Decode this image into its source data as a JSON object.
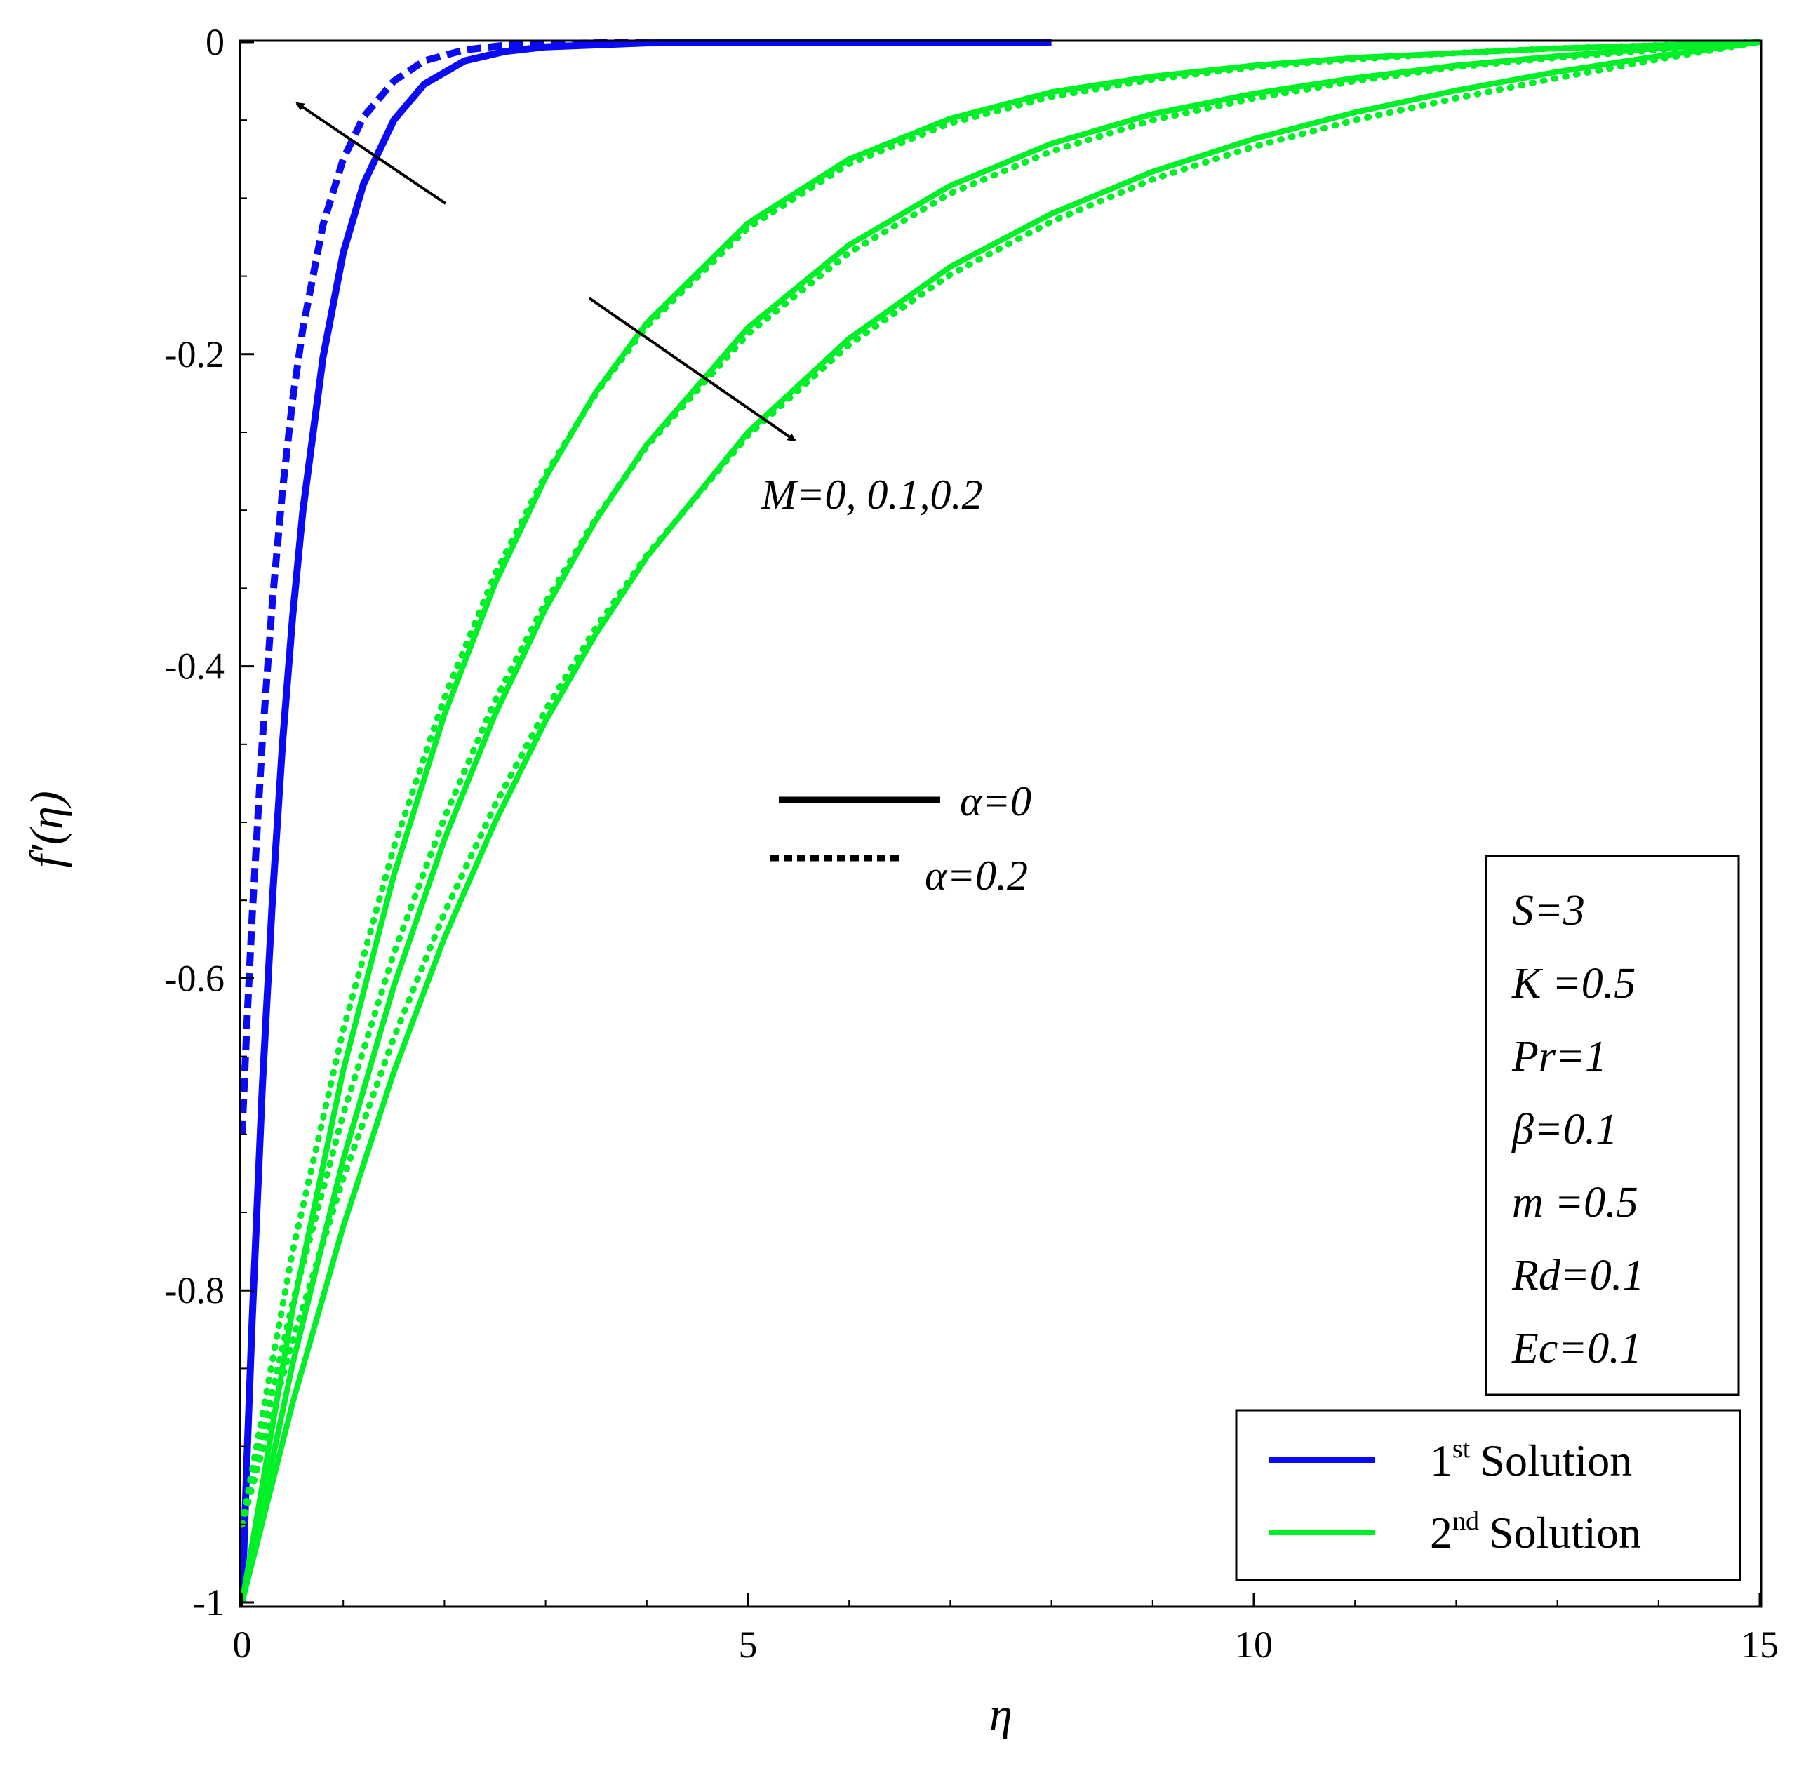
{
  "chart_data": {
    "type": "line",
    "xlabel": "η",
    "ylabel": "f′(η)",
    "xlim": [
      0,
      15
    ],
    "ylim": [
      -1,
      0
    ],
    "x_ticks": [
      {
        "value": 0,
        "label": "0"
      },
      {
        "value": 5,
        "label": "5"
      },
      {
        "value": 10,
        "label": "10"
      },
      {
        "value": 15,
        "label": "15"
      }
    ],
    "y_ticks": [
      {
        "value": 0,
        "label": "0"
      },
      {
        "value": -0.2,
        "label": "-0.2"
      },
      {
        "value": -0.4,
        "label": "-0.4"
      },
      {
        "value": -0.6,
        "label": "-0.6"
      },
      {
        "value": -0.8,
        "label": "-0.8"
      },
      {
        "value": -1,
        "label": "-1"
      }
    ],
    "colors": {
      "first": "#0a0af5",
      "second": "#00f028"
    },
    "series": [
      {
        "solution": "1st",
        "alpha": "0",
        "style": "solid",
        "x": [
          0,
          0.05,
          0.1,
          0.2,
          0.3,
          0.4,
          0.5,
          0.6,
          0.8,
          1.0,
          1.2,
          1.5,
          1.8,
          2.2,
          2.6,
          3.0,
          4.0,
          5.0,
          6.0,
          7.0,
          8.0
        ],
        "y": [
          -1.0,
          -0.905,
          -0.819,
          -0.67,
          -0.549,
          -0.449,
          -0.368,
          -0.301,
          -0.202,
          -0.135,
          -0.091,
          -0.05,
          -0.027,
          -0.012,
          -0.006,
          -0.003,
          -0.0005,
          -0.0001,
          0,
          0,
          0
        ]
      },
      {
        "solution": "1st",
        "alpha": "0.2",
        "style": "dashed",
        "x": [
          0,
          0.05,
          0.1,
          0.2,
          0.3,
          0.4,
          0.5,
          0.6,
          0.8,
          1.0,
          1.2,
          1.5,
          1.8,
          2.2,
          2.6,
          3.0,
          4.0,
          5.0,
          6.0,
          7.0,
          8.0
        ],
        "y": [
          -0.7,
          -0.626,
          -0.56,
          -0.448,
          -0.358,
          -0.287,
          -0.229,
          -0.184,
          -0.117,
          -0.075,
          -0.048,
          -0.025,
          -0.012,
          -0.005,
          -0.002,
          -0.001,
          0,
          0,
          0,
          0,
          0
        ]
      },
      {
        "solution": "2nd",
        "alpha": "0",
        "style": "solid",
        "x": [
          0,
          0.5,
          1,
          1.5,
          2,
          2.5,
          3,
          3.5,
          4,
          5,
          6,
          7,
          8,
          9,
          10,
          11,
          12,
          13,
          14,
          15
        ],
        "y": [
          -1.0,
          -0.812,
          -0.659,
          -0.534,
          -0.431,
          -0.347,
          -0.279,
          -0.224,
          -0.18,
          -0.116,
          -0.075,
          -0.049,
          -0.032,
          -0.022,
          -0.015,
          -0.01,
          -0.007,
          -0.004,
          -0.002,
          0
        ]
      },
      {
        "solution": "2nd",
        "alpha": "0",
        "style": "solid",
        "x": [
          0,
          0.5,
          1,
          1.5,
          2,
          2.5,
          3,
          3.5,
          4,
          5,
          6,
          7,
          8,
          9,
          10,
          11,
          12,
          13,
          14,
          15
        ],
        "y": [
          -1.0,
          -0.847,
          -0.716,
          -0.605,
          -0.511,
          -0.431,
          -0.363,
          -0.306,
          -0.258,
          -0.183,
          -0.13,
          -0.092,
          -0.065,
          -0.046,
          -0.033,
          -0.023,
          -0.015,
          -0.009,
          -0.004,
          0
        ]
      },
      {
        "solution": "2nd",
        "alpha": "0",
        "style": "solid",
        "x": [
          0,
          0.5,
          1,
          1.5,
          2,
          2.5,
          3,
          3.5,
          4,
          5,
          6,
          7,
          8,
          9,
          10,
          11,
          12,
          13,
          14,
          15
        ],
        "y": [
          -1.0,
          -0.872,
          -0.759,
          -0.66,
          -0.574,
          -0.5,
          -0.435,
          -0.379,
          -0.33,
          -0.25,
          -0.19,
          -0.144,
          -0.11,
          -0.083,
          -0.062,
          -0.045,
          -0.031,
          -0.019,
          -0.009,
          0
        ]
      },
      {
        "solution": "2nd",
        "alpha": "0.2",
        "style": "dotted",
        "x": [
          0,
          0.5,
          1,
          1.5,
          2,
          2.5,
          3,
          3.5,
          4,
          5,
          6,
          7,
          8,
          9,
          10,
          11,
          12,
          13,
          14,
          15
        ],
        "y": [
          -0.95,
          -0.775,
          -0.633,
          -0.516,
          -0.42,
          -0.341,
          -0.277,
          -0.225,
          -0.182,
          -0.119,
          -0.078,
          -0.052,
          -0.035,
          -0.024,
          -0.016,
          -0.011,
          -0.007,
          -0.004,
          -0.002,
          0
        ]
      },
      {
        "solution": "2nd",
        "alpha": "0.2",
        "style": "dotted",
        "x": [
          0,
          0.5,
          1,
          1.5,
          2,
          2.5,
          3,
          3.5,
          4,
          5,
          6,
          7,
          8,
          9,
          10,
          11,
          12,
          13,
          14,
          15
        ],
        "y": [
          -0.95,
          -0.808,
          -0.687,
          -0.584,
          -0.497,
          -0.422,
          -0.359,
          -0.305,
          -0.259,
          -0.187,
          -0.135,
          -0.097,
          -0.07,
          -0.05,
          -0.036,
          -0.025,
          -0.016,
          -0.01,
          -0.005,
          0
        ]
      },
      {
        "solution": "2nd",
        "alpha": "0.2",
        "style": "dotted",
        "x": [
          0,
          0.5,
          1,
          1.5,
          2,
          2.5,
          3,
          3.5,
          4,
          5,
          6,
          7,
          8,
          9,
          10,
          11,
          12,
          13,
          14,
          15
        ],
        "y": [
          -0.95,
          -0.832,
          -0.728,
          -0.638,
          -0.558,
          -0.489,
          -0.428,
          -0.375,
          -0.329,
          -0.252,
          -0.194,
          -0.149,
          -0.115,
          -0.088,
          -0.067,
          -0.05,
          -0.036,
          -0.023,
          -0.011,
          0
        ]
      }
    ],
    "annotations": {
      "m_label": "M=0, 0.1,0.2",
      "style_solid": "α=0",
      "style_dotted": "α=0.2"
    },
    "parameters": [
      "S=3",
      "K =0.5",
      "Pr=1",
      "β=0.1",
      "m =0.5",
      "Rd=0.1",
      "Ec=0.1"
    ],
    "legend": {
      "placement": "bottom-right",
      "entries": [
        {
          "num": "1",
          "sup": "st",
          "text": "Solution",
          "color": "#0a0af5"
        },
        {
          "num": "2",
          "sup": "nd",
          "text": "Solution",
          "color": "#00f028"
        }
      ]
    }
  }
}
